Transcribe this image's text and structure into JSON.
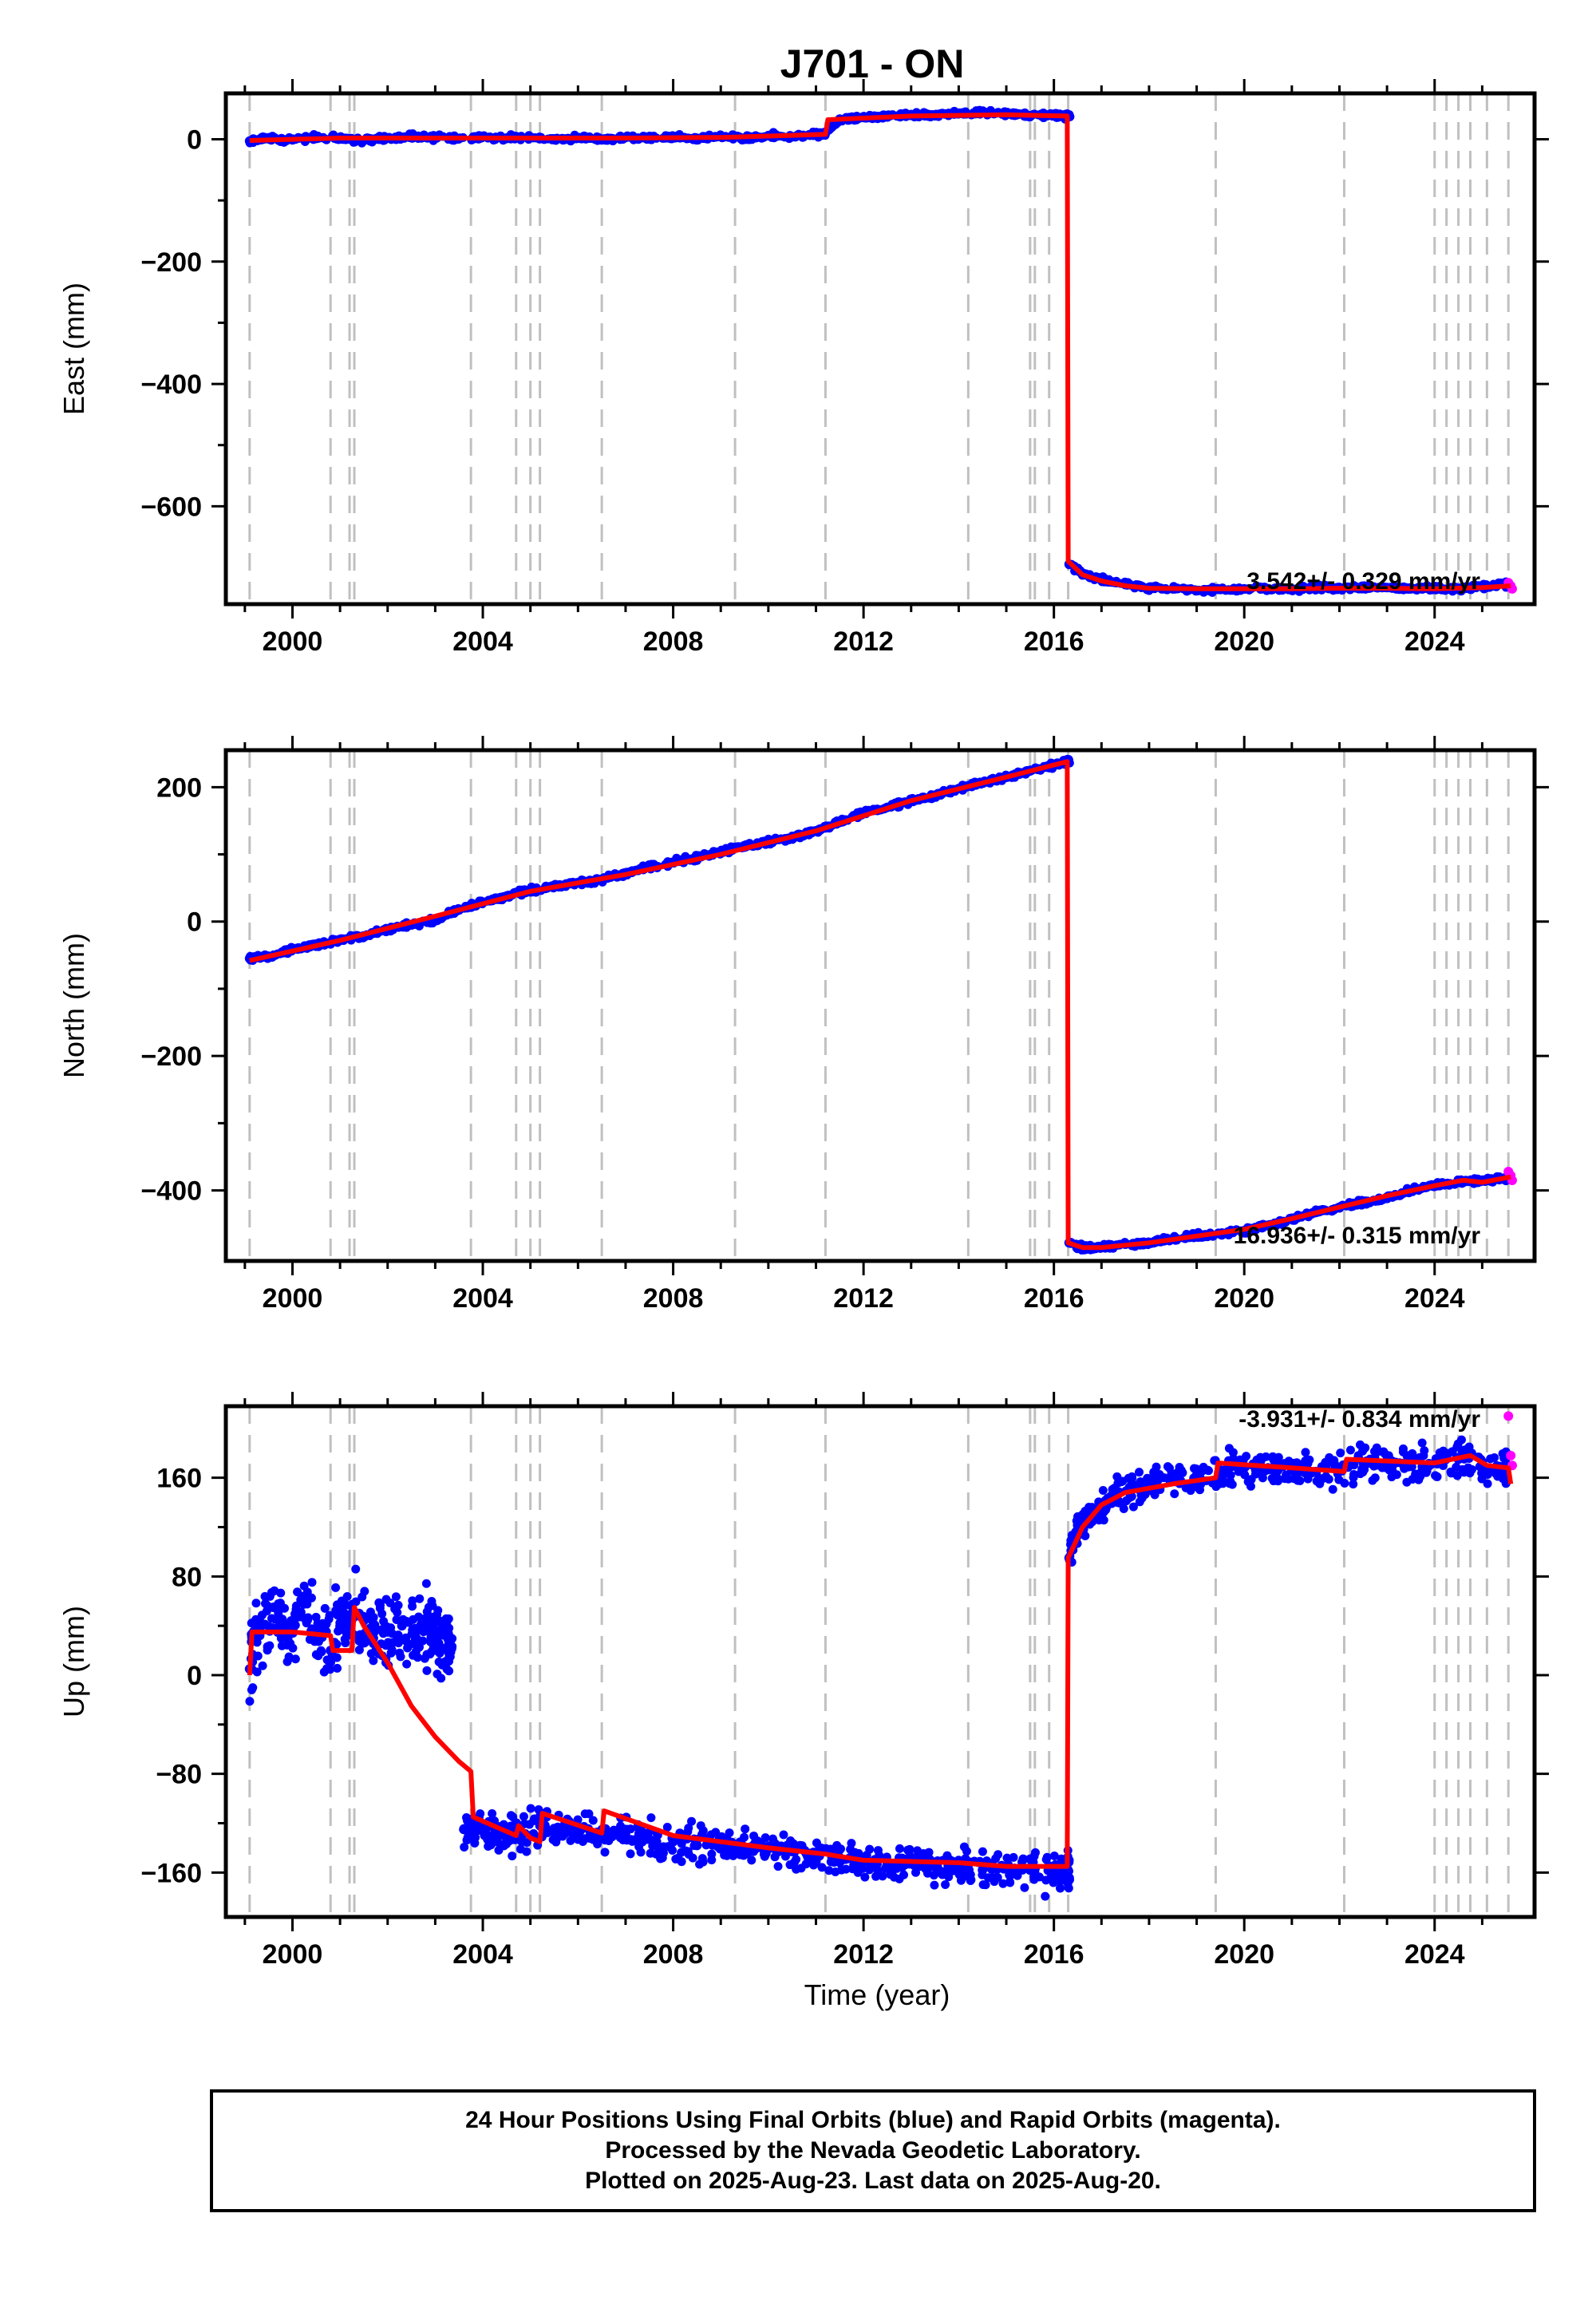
{
  "title": "J701 - ON",
  "footer": {
    "line1": "24 Hour Positions Using Final Orbits (blue) and Rapid Orbits (magenta).",
    "line2": "Processed by the Nevada Geodetic Laboratory.",
    "line3": "Plotted on 2025-Aug-23. Last data on 2025-Aug-20."
  },
  "colors": {
    "final_orbits": "#0000ff",
    "rapid_orbits": "#ff00ff",
    "model": "#ff0000",
    "event_lines": "#c0c0c0"
  },
  "chart_data": [
    {
      "type": "scatter",
      "ylabel": "East (mm)",
      "xlabel": "",
      "xlim": [
        1998.6,
        2026.1
      ],
      "ylim": [
        -760,
        75
      ],
      "xticks": [
        2000,
        2004,
        2008,
        2012,
        2016,
        2020,
        2024
      ],
      "yticks": [
        0,
        -200,
        -400,
        -600
      ],
      "rate_text": "3.542+/- 0.329 mm/yr",
      "event_lines": [
        1999.1,
        2000.8,
        2001.2,
        2001.3,
        2003.75,
        2004.7,
        2005.0,
        2005.2,
        2006.5,
        2009.3,
        2011.2,
        2014.2,
        2015.5,
        2015.6,
        2015.9,
        2016.3,
        2019.4,
        2022.1,
        2024.0,
        2024.25,
        2024.5,
        2024.75,
        2025.1,
        2025.55
      ],
      "grid": false,
      "series": [
        {
          "type": "scatter",
          "color": "#0000ff",
          "x": [
            1999.1,
            1999.5,
            2000.0,
            2000.5,
            2001.0,
            2001.5,
            2002.0,
            2002.5,
            2003.0,
            2003.5,
            2004.0,
            2004.5,
            2005.0,
            2005.5,
            2006.0,
            2006.5,
            2007.0,
            2007.5,
            2008.0,
            2008.5,
            2009.0,
            2009.5,
            2010.0,
            2010.5,
            2011.0,
            2011.2,
            2011.5,
            2012.0,
            2012.5,
            2013.0,
            2013.5,
            2014.0,
            2014.5,
            2015.0,
            2015.5,
            2016.0,
            2016.28,
            2016.32,
            2016.6,
            2017.0,
            2017.5,
            2018.0,
            2018.5,
            2019.0,
            2019.5,
            2020.0,
            2020.5,
            2021.0,
            2021.5,
            2022.0,
            2022.5,
            2023.0,
            2023.5,
            2024.0,
            2024.5,
            2025.0,
            2025.5
          ],
          "y": [
            -3,
            2,
            -1,
            3,
            1,
            -2,
            2,
            4,
            3,
            1,
            4,
            2,
            3,
            0,
            2,
            -1,
            3,
            2,
            4,
            1,
            5,
            2,
            6,
            4,
            8,
            10,
            33,
            36,
            38,
            39,
            40,
            42,
            44,
            42,
            38,
            40,
            38,
            -695,
            -710,
            -720,
            -728,
            -733,
            -735,
            -738,
            -736,
            -735,
            -735,
            -735,
            -733,
            -734,
            -733,
            -733,
            -735,
            -734,
            -736,
            -730,
            -728
          ]
        },
        {
          "type": "scatter",
          "color": "#ff00ff",
          "x": [
            2025.55,
            2025.6,
            2025.63
          ],
          "y": [
            -725,
            -730,
            -735
          ]
        },
        {
          "type": "line",
          "color": "#ff0000",
          "x": [
            1999.1,
            2001.0,
            2003.0,
            2005.0,
            2007.0,
            2009.0,
            2011.2,
            2011.25,
            2013.0,
            2015.0,
            2016.28,
            2016.3,
            2016.6,
            2017.0,
            2017.5,
            2018.0,
            2019.0,
            2020.0,
            2021.0,
            2022.0,
            2023.0,
            2024.0,
            2025.0,
            2025.6
          ],
          "y": [
            -2,
            2,
            2,
            2,
            2,
            3,
            8,
            32,
            38,
            40,
            38,
            -690,
            -712,
            -722,
            -730,
            -734,
            -735,
            -735,
            -735,
            -734,
            -734,
            -735,
            -733,
            -730
          ]
        }
      ]
    },
    {
      "type": "scatter",
      "ylabel": "North (mm)",
      "xlabel": "",
      "xlim": [
        1998.6,
        2026.1
      ],
      "ylim": [
        -505,
        255
      ],
      "xticks": [
        2000,
        2004,
        2008,
        2012,
        2016,
        2020,
        2024
      ],
      "yticks": [
        200,
        0,
        -200,
        -400
      ],
      "rate_text": "16.936+/- 0.315 mm/yr",
      "event_lines": [
        1999.1,
        2000.8,
        2001.2,
        2001.3,
        2003.75,
        2004.7,
        2005.0,
        2005.2,
        2006.5,
        2009.3,
        2011.2,
        2014.2,
        2015.5,
        2015.6,
        2015.9,
        2016.3,
        2019.4,
        2022.1,
        2024.0,
        2024.25,
        2024.5,
        2024.75,
        2025.1,
        2025.55
      ],
      "grid": false,
      "series": [
        {
          "type": "scatter",
          "color": "#0000ff",
          "x": [
            1999.1,
            1999.5,
            2000.0,
            2000.5,
            2001.0,
            2001.5,
            2002.0,
            2002.5,
            2003.0,
            2003.5,
            2004.0,
            2004.5,
            2005.0,
            2005.5,
            2006.0,
            2006.5,
            2007.0,
            2007.5,
            2008.0,
            2008.5,
            2009.0,
            2009.5,
            2010.0,
            2010.5,
            2011.0,
            2011.5,
            2012.0,
            2012.5,
            2013.0,
            2013.5,
            2014.0,
            2014.5,
            2015.0,
            2015.5,
            2016.0,
            2016.28,
            2016.32,
            2016.6,
            2017.0,
            2017.5,
            2018.0,
            2018.5,
            2019.0,
            2019.5,
            2020.0,
            2020.5,
            2021.0,
            2021.5,
            2022.0,
            2022.5,
            2023.0,
            2023.5,
            2024.0,
            2024.5,
            2025.0,
            2025.5
          ],
          "y": [
            -55,
            -52,
            -42,
            -35,
            -28,
            -22,
            -12,
            -5,
            2,
            18,
            28,
            38,
            46,
            52,
            58,
            63,
            72,
            82,
            88,
            95,
            103,
            112,
            118,
            125,
            135,
            148,
            162,
            170,
            180,
            188,
            198,
            207,
            215,
            225,
            233,
            238,
            -478,
            -485,
            -485,
            -480,
            -478,
            -472,
            -468,
            -465,
            -460,
            -452,
            -443,
            -433,
            -425,
            -418,
            -410,
            -400,
            -392,
            -388,
            -385,
            -383
          ]
        },
        {
          "type": "scatter",
          "color": "#ff00ff",
          "x": [
            2025.55,
            2025.6,
            2025.63
          ],
          "y": [
            -372,
            -378,
            -385
          ]
        },
        {
          "type": "line",
          "color": "#ff0000",
          "x": [
            1999.1,
            2001.0,
            2003.0,
            2005.0,
            2007.0,
            2009.0,
            2011.0,
            2013.0,
            2015.0,
            2016.28,
            2016.3,
            2016.6,
            2017.0,
            2018.0,
            2019.0,
            2020.0,
            2021.0,
            2022.0,
            2023.0,
            2024.0,
            2024.6,
            2025.0,
            2025.6
          ],
          "y": [
            -58,
            -28,
            8,
            45,
            70,
            100,
            135,
            180,
            215,
            238,
            -478,
            -485,
            -485,
            -478,
            -468,
            -458,
            -442,
            -425,
            -408,
            -393,
            -385,
            -388,
            -380
          ]
        }
      ]
    },
    {
      "type": "scatter",
      "ylabel": "Up (mm)",
      "xlabel": "Time (year)",
      "xlim": [
        1998.6,
        2026.1
      ],
      "ylim": [
        -196,
        218
      ],
      "xticks": [
        2000,
        2004,
        2008,
        2012,
        2016,
        2020,
        2024
      ],
      "yticks": [
        160,
        80,
        0,
        -80,
        -160
      ],
      "rate_text": "-3.931+/- 0.834 mm/yr",
      "event_lines": [
        1999.1,
        2000.8,
        2001.2,
        2001.3,
        2003.75,
        2004.7,
        2005.0,
        2005.2,
        2006.5,
        2009.3,
        2011.2,
        2014.2,
        2015.5,
        2015.6,
        2015.9,
        2016.3,
        2019.4,
        2022.1,
        2024.0,
        2024.25,
        2024.5,
        2024.75,
        2025.1,
        2025.55
      ],
      "grid": false,
      "series": [
        {
          "type": "scatter",
          "color": "#0000ff",
          "x": [
            1999.1,
            1999.3,
            1999.6,
            1999.9,
            2000.2,
            2000.5,
            2000.8,
            2001.1,
            2001.4,
            2001.7,
            2002.0,
            2002.3,
            2002.6,
            2002.9,
            2003.1,
            2003.3,
            2003.6,
            2003.9,
            2004.2,
            2004.5,
            2004.8,
            2005.2,
            2005.6,
            2006.0,
            2006.5,
            2007.0,
            2007.5,
            2008.0,
            2008.5,
            2009.0,
            2009.5,
            2010.0,
            2010.5,
            2011.0,
            2011.5,
            2012.0,
            2012.5,
            2013.0,
            2013.5,
            2014.0,
            2014.5,
            2015.0,
            2015.5,
            2016.0,
            2016.28,
            2016.32,
            2016.5,
            2016.8,
            2017.2,
            2017.6,
            2018.0,
            2018.5,
            2019.0,
            2019.5,
            2020.0,
            2020.5,
            2021.0,
            2021.5,
            2022.0,
            2022.5,
            2023.0,
            2023.5,
            2024.0,
            2024.5,
            2025.0,
            2025.5
          ],
          "y": [
            5,
            40,
            55,
            30,
            60,
            35,
            20,
            45,
            50,
            30,
            35,
            40,
            30,
            45,
            20,
            25,
            -125,
            -120,
            -130,
            -132,
            -128,
            -120,
            -128,
            -125,
            -130,
            -128,
            -133,
            -135,
            -138,
            -140,
            -142,
            -140,
            -143,
            -145,
            -148,
            -150,
            -152,
            -152,
            -155,
            -155,
            -158,
            -157,
            -158,
            -160,
            -158,
            95,
            118,
            130,
            145,
            152,
            155,
            160,
            162,
            165,
            168,
            168,
            166,
            165,
            168,
            172,
            172,
            170,
            172,
            175,
            170,
            165
          ]
        },
        {
          "type": "scatter",
          "color": "#ff00ff",
          "x": [
            2025.55,
            2025.6,
            2025.63
          ],
          "y": [
            210,
            178,
            170
          ]
        },
        {
          "type": "line",
          "color": "#ff0000",
          "x": [
            1999.1,
            1999.15,
            2000.0,
            2000.8,
            2000.85,
            2001.25,
            2001.3,
            2001.5,
            2002.0,
            2002.5,
            2003.0,
            2003.5,
            2003.75,
            2003.8,
            2004.7,
            2004.75,
            2005.0,
            2005.2,
            2005.25,
            2006.5,
            2006.55,
            2008.0,
            2010.0,
            2011.2,
            2012.0,
            2014.0,
            2015.0,
            2016.28,
            2016.3,
            2016.6,
            2017.0,
            2017.5,
            2018.5,
            2019.4,
            2019.45,
            2021.0,
            2022.1,
            2022.15,
            2024.0,
            2024.75,
            2025.1,
            2025.55,
            2025.6
          ],
          "y": [
            0,
            35,
            35,
            32,
            20,
            20,
            55,
            40,
            10,
            -25,
            -50,
            -70,
            -78,
            -115,
            -130,
            -122,
            -132,
            -135,
            -112,
            -128,
            -110,
            -130,
            -140,
            -145,
            -150,
            -152,
            -155,
            -155,
            95,
            120,
            138,
            148,
            155,
            160,
            172,
            168,
            165,
            175,
            172,
            178,
            170,
            168,
            155
          ]
        }
      ]
    }
  ]
}
